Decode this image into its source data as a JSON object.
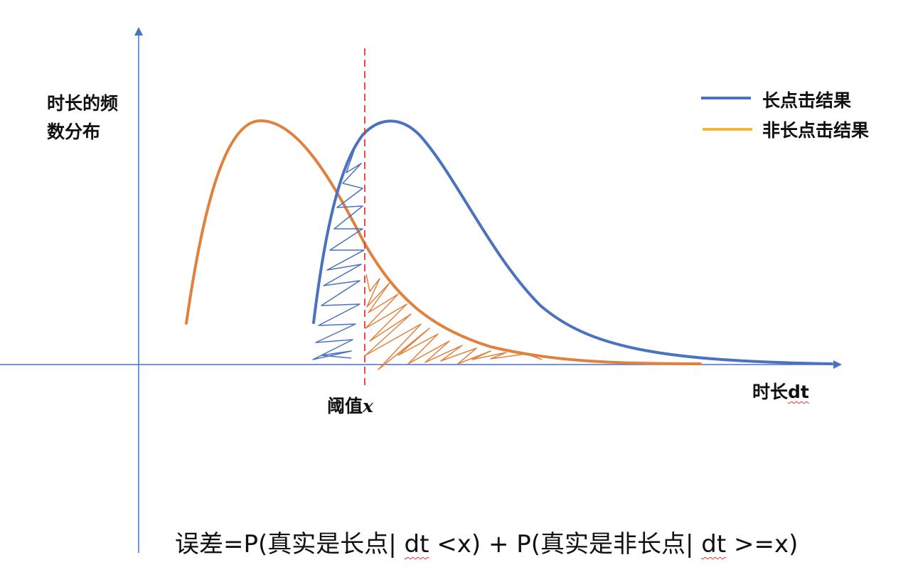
{
  "axes": {
    "ylabel_line1": "时长的频",
    "ylabel_line2": "数分布",
    "xlabel_prefix": "时长",
    "xlabel_unit": "dt"
  },
  "threshold": {
    "label_prefix": "阈值",
    "label_var": "x"
  },
  "legend": {
    "items": [
      {
        "label": "长点击结果",
        "color": "#4a72c0"
      },
      {
        "label": "非长点击结果",
        "color": "#f0b93a"
      }
    ]
  },
  "formula": {
    "part1": "误差=P(真实是长点| ",
    "dt1": "dt",
    "part2": " <x) + P(真实是非长点| ",
    "dt2": "dt",
    "part3": " >=x)"
  },
  "colors": {
    "axis": "#4a72c0",
    "long_click_curve": "#4a72c0",
    "non_long_click_curve": "#e0813e",
    "threshold_line": "#e03a3a"
  }
}
